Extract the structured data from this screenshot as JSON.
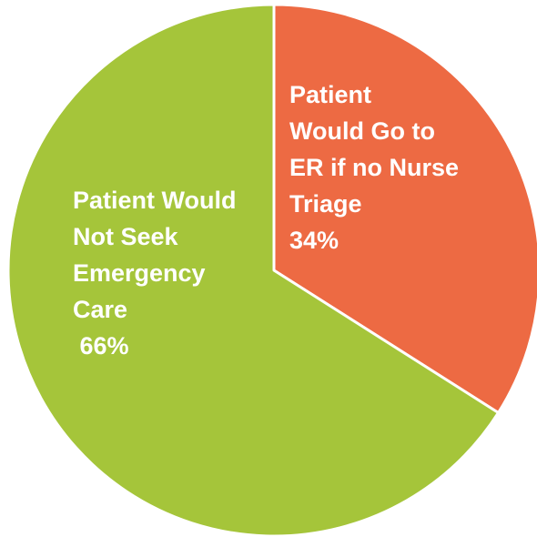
{
  "chart_data": {
    "type": "pie",
    "title": "",
    "slices": [
      {
        "label_lines": [
          "Patient",
          "Would Go to",
          "ER if no Nurse",
          "Triage",
          "34%"
        ],
        "value": 34,
        "color": "#ed6a43"
      },
      {
        "label_lines": [
          "Patient Would",
          "Not Seek",
          "Emergency",
          "Care",
          " 66%"
        ],
        "value": 66,
        "color": "#a5c53a"
      }
    ],
    "legend": "none",
    "start": "top, clockwise"
  }
}
